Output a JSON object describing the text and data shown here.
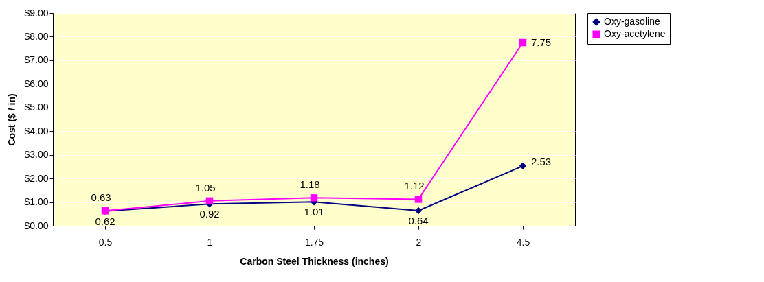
{
  "chart_data": {
    "type": "line",
    "xlabel": "Carbon Steel Thickness (inches)",
    "ylabel": "Cost ($ / in)",
    "categories": [
      "0.5",
      "1",
      "1.75",
      "2",
      "4.5"
    ],
    "series": [
      {
        "name": "Oxy-gasoline",
        "color": "#000080",
        "marker": "diamond",
        "values": [
          0.62,
          0.92,
          1.01,
          0.64,
          2.53
        ]
      },
      {
        "name": "Oxy-acetylene",
        "color": "#ff00ff",
        "marker": "square",
        "values": [
          0.63,
          1.05,
          1.18,
          1.12,
          7.75
        ]
      }
    ],
    "ylim": [
      0,
      9
    ],
    "yticks": [
      {
        "value": 0,
        "label": "$0.00"
      },
      {
        "value": 1,
        "label": "$1.00"
      },
      {
        "value": 2,
        "label": "$2.00"
      },
      {
        "value": 3,
        "label": "$3.00"
      },
      {
        "value": 4,
        "label": "$4.00"
      },
      {
        "value": 5,
        "label": "$5.00"
      },
      {
        "value": 6,
        "label": "$6.00"
      },
      {
        "value": 7,
        "label": "$7.00"
      },
      {
        "value": 8,
        "label": "$8.00"
      },
      {
        "value": 9,
        "label": "$9.00"
      }
    ],
    "grid": "y",
    "legend": "right",
    "data_labels": true
  }
}
